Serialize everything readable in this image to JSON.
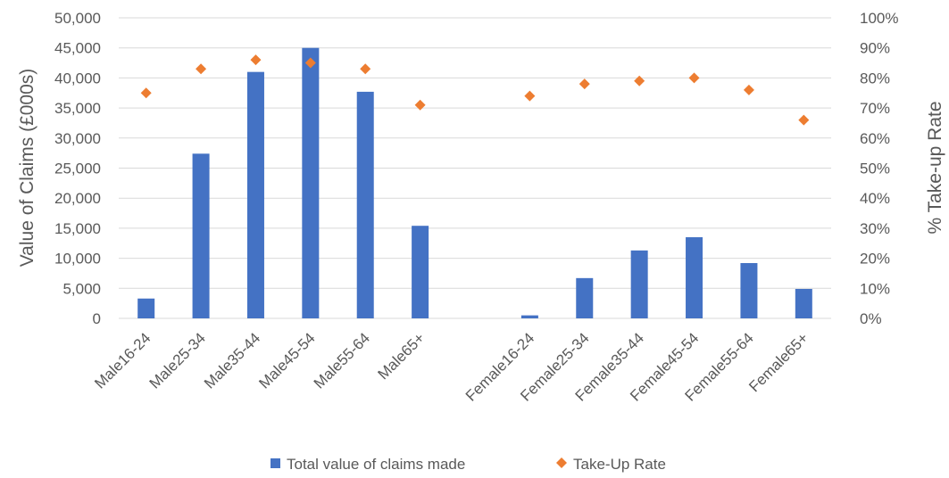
{
  "chart_data": {
    "type": "bar",
    "categories": [
      "Male16-24",
      "Male25-34",
      "Male35-44",
      "Male45-54",
      "Male55-64",
      "Male65+",
      "",
      "Female16-24",
      "Female25-34",
      "Female35-44",
      "Female45-54",
      "Female55-64",
      "Female65+"
    ],
    "series": [
      {
        "name": "Total value of claims made",
        "type": "bar",
        "axis": "left",
        "color": "#4472c4",
        "values": [
          3300,
          27400,
          41000,
          45000,
          37700,
          15400,
          null,
          500,
          6700,
          11300,
          13500,
          9200,
          4900
        ]
      },
      {
        "name": "Take-Up Rate",
        "type": "scatter",
        "axis": "right",
        "marker": "diamond",
        "color": "#ed7d31",
        "values": [
          75,
          83,
          86,
          85,
          83,
          71,
          null,
          74,
          78,
          79,
          80,
          76,
          66
        ]
      }
    ],
    "ylabel": "Value of Claims (£000s)",
    "y2label": "% Take-up Rate",
    "ylim": [
      0,
      50000
    ],
    "y2lim": [
      0,
      100
    ],
    "yticks": [
      "0",
      "5,000",
      "10,000",
      "15,000",
      "20,000",
      "25,000",
      "30,000",
      "35,000",
      "40,000",
      "45,000",
      "50,000"
    ],
    "y2ticks": [
      "0%",
      "10%",
      "20%",
      "30%",
      "40%",
      "50%",
      "60%",
      "70%",
      "80%",
      "90%",
      "100%"
    ],
    "grid": true,
    "legend": "bottom"
  }
}
